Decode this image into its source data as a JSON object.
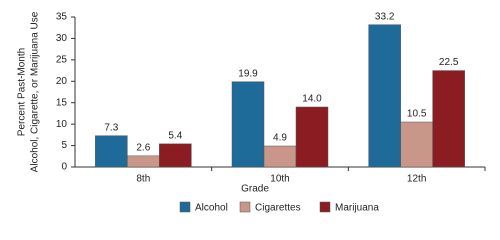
{
  "chart_data": {
    "type": "bar",
    "categories": [
      "8th",
      "10th",
      "12th"
    ],
    "series": [
      {
        "name": "Alcohol",
        "color": "#1e6a98",
        "values": [
          7.3,
          19.9,
          33.2
        ],
        "value_labels": [
          "7.3",
          "19.9",
          "33.2"
        ]
      },
      {
        "name": "Cigarettes",
        "color": "#c8978a",
        "values": [
          2.6,
          4.9,
          10.5
        ],
        "value_labels": [
          "2.6",
          "4.9",
          "10.5"
        ]
      },
      {
        "name": "Marijuana",
        "color": "#8b1c22",
        "values": [
          5.4,
          14.0,
          22.5
        ],
        "value_labels": [
          "5.4",
          "14.0",
          "22.5"
        ]
      }
    ],
    "xlabel": "Grade",
    "ylabel": [
      "Percent Past-Month",
      "Alcohol, Cigarette, or Marijuana Use"
    ],
    "ylim": [
      0,
      35
    ],
    "yticks": [
      0,
      5,
      10,
      15,
      20,
      25,
      30,
      35
    ],
    "legend": "bottom",
    "grid": false
  }
}
